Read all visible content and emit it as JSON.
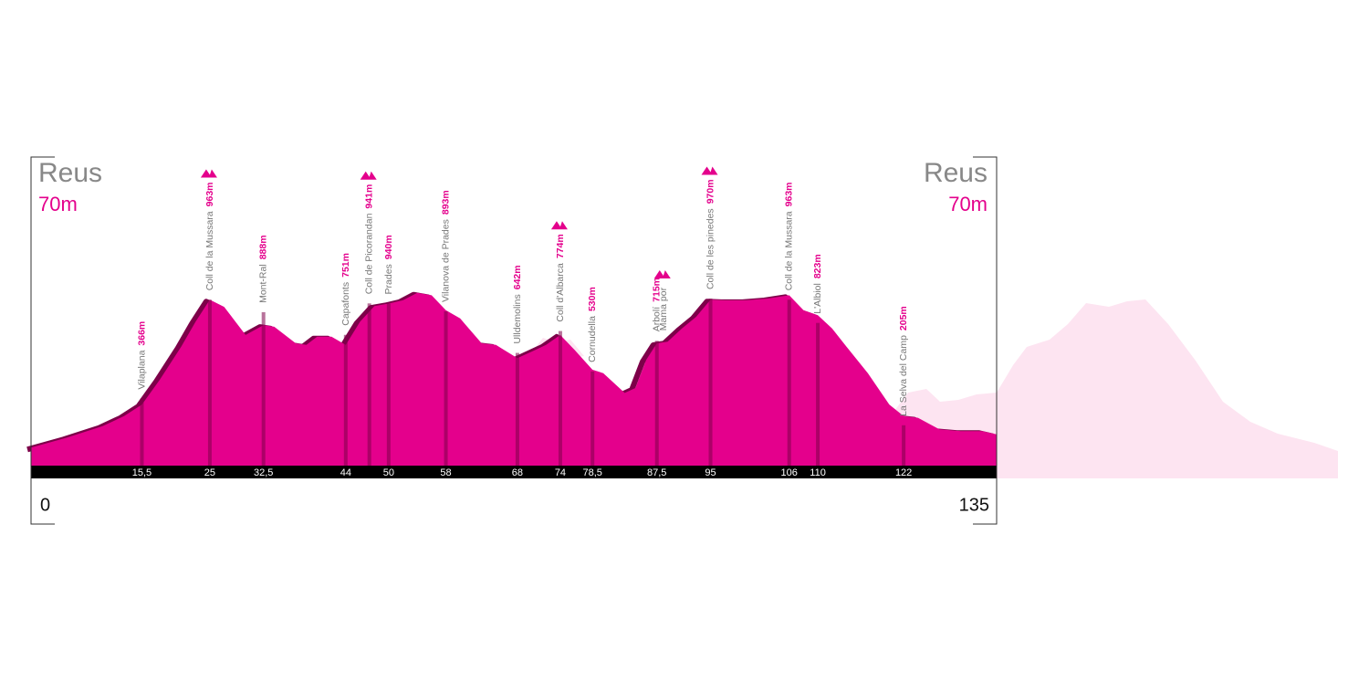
{
  "chart_data": {
    "type": "area",
    "color": "#e4008c",
    "shadow_color": "#7d0049",
    "start": {
      "name": "Reus",
      "elevation": {
        "value": 70,
        "label": "70m"
      }
    },
    "end": {
      "name": "Reus",
      "elevation": {
        "value": 70,
        "label": "70m"
      }
    },
    "xlim": [
      0,
      135
    ],
    "ylim": [
      0,
      1050
    ],
    "xticks": [
      {
        "value": 15.5,
        "label": "15,5"
      },
      25,
      {
        "value": 32.5,
        "label": "32,5"
      },
      44,
      50,
      58,
      68,
      74,
      {
        "value": 78.5,
        "label": "78,5"
      },
      {
        "value": 87.5,
        "label": "87,5"
      },
      95,
      106,
      110,
      122
    ],
    "x": [
      0,
      5,
      10,
      13,
      15.5,
      18,
      21,
      23,
      25,
      27,
      30,
      32.5,
      34,
      37,
      38.5,
      40,
      42,
      44,
      46,
      48,
      50,
      52,
      54,
      56,
      58,
      60,
      63,
      65,
      68,
      70,
      72,
      74,
      76,
      78.5,
      80,
      83,
      84.5,
      86,
      87.5,
      89,
      91,
      93,
      95,
      97,
      100,
      103,
      106,
      108,
      110,
      112,
      114,
      117,
      120,
      122,
      124,
      127,
      130,
      133,
      135
    ],
    "values": [
      70,
      130,
      200,
      260,
      330,
      480,
      680,
      830,
      963,
      920,
      750,
      810,
      800,
      700,
      690,
      740,
      740,
      690,
      830,
      925,
      940,
      960,
      1005,
      990,
      900,
      850,
      700,
      690,
      610,
      650,
      690,
      750,
      660,
      540,
      520,
      400,
      430,
      600,
      700,
      710,
      790,
      860,
      963,
      960,
      960,
      970,
      990,
      900,
      870,
      790,
      680,
      520,
      330,
      260,
      250,
      180,
      170,
      170,
      150
    ],
    "waypoints": [
      {
        "name": "Vilaplana",
        "km": 15.5,
        "elevation": {
          "value": 366,
          "label": "366m"
        }
      },
      {
        "name": "Coll de la Mussara",
        "km": 25,
        "elevation": {
          "value": 963,
          "label": "963m"
        },
        "summit": true
      },
      {
        "name": "Mont-Ral",
        "km": 32.5,
        "elevation": {
          "value": 888,
          "label": "888m"
        }
      },
      {
        "name": "Capafonts",
        "km": 44,
        "elevation": {
          "value": 751,
          "label": "751m"
        }
      },
      {
        "name": "Coll de Picorandan",
        "km": 47.3,
        "elevation": {
          "value": 941,
          "label": "941m"
        },
        "summit": true
      },
      {
        "name": "Prades",
        "km": 50,
        "elevation": {
          "value": 940,
          "label": "940m"
        }
      },
      {
        "name": "Vilanova de Prades",
        "km": 58,
        "elevation": {
          "value": 893,
          "label": "893m"
        }
      },
      {
        "name": "Ulldemolins",
        "km": 68,
        "elevation": {
          "value": 642,
          "label": "642m"
        }
      },
      {
        "name": "Coll d'Albarca",
        "km": 74,
        "elevation": {
          "value": 774,
          "label": "774m"
        },
        "summit": true
      },
      {
        "name": "Cornudella",
        "km": 78.5,
        "elevation": {
          "value": 530,
          "label": "530m"
        }
      },
      {
        "name": "Arbolí",
        "km": 87.5,
        "elevation": {
          "value": 715,
          "label": "715m"
        }
      },
      {
        "name": "Mama por",
        "km": 88.4,
        "summit": true
      },
      {
        "name": "Coll de les pinedes",
        "km": 95,
        "elevation": {
          "value": 970,
          "label": "970m"
        },
        "summit": true
      },
      {
        "name": "Coll de la Mussara",
        "km": 106,
        "elevation": {
          "value": 963,
          "label": "963m"
        }
      },
      {
        "name": "L'Albiol",
        "km": 110,
        "elevation": {
          "value": 823,
          "label": "823m"
        }
      },
      {
        "name": "La Selva del Camp",
        "km": 122,
        "elevation": {
          "value": 205,
          "label": "205m"
        }
      }
    ]
  }
}
